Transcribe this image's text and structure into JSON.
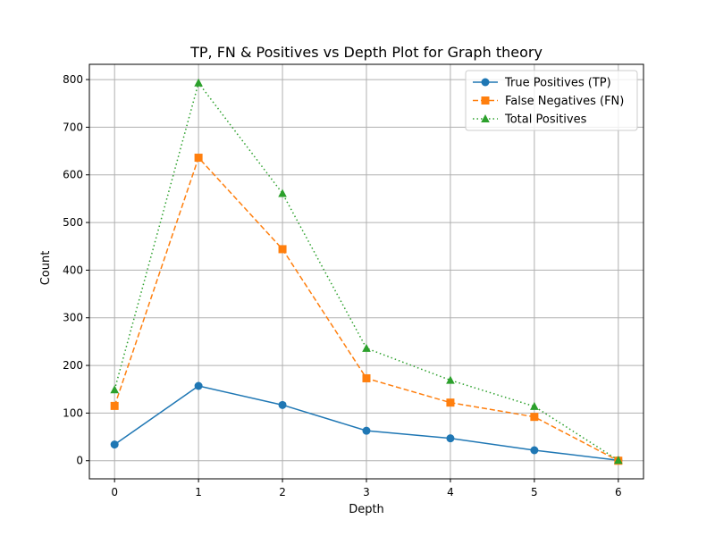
{
  "chart_data": {
    "type": "line",
    "title": "TP, FN & Positives vs Depth Plot for Graph theory",
    "xlabel": "Depth",
    "ylabel": "Count",
    "x": [
      0,
      1,
      2,
      3,
      4,
      5,
      6
    ],
    "xlim": [
      -0.3,
      6.3
    ],
    "ylim": [
      -38,
      832
    ],
    "xticks": [
      "0",
      "1",
      "2",
      "3",
      "4",
      "5",
      "6"
    ],
    "yticks": [
      "0",
      "100",
      "200",
      "300",
      "400",
      "500",
      "600",
      "700",
      "800"
    ],
    "grid": true,
    "legend_position": "top-right",
    "series": [
      {
        "name": "True Positives (TP)",
        "values": [
          34,
          157,
          117,
          63,
          47,
          22,
          1
        ],
        "color": "#1f77b4",
        "line_style": "solid",
        "marker": "circle"
      },
      {
        "name": "False Negatives (FN)",
        "values": [
          115,
          636,
          444,
          173,
          122,
          92,
          0
        ],
        "color": "#ff7f0e",
        "line_style": "dashed",
        "marker": "square"
      },
      {
        "name": "Total Positives",
        "values": [
          149,
          793,
          561,
          236,
          169,
          114,
          1
        ],
        "color": "#2ca02c",
        "line_style": "dotted",
        "marker": "triangle"
      }
    ]
  }
}
